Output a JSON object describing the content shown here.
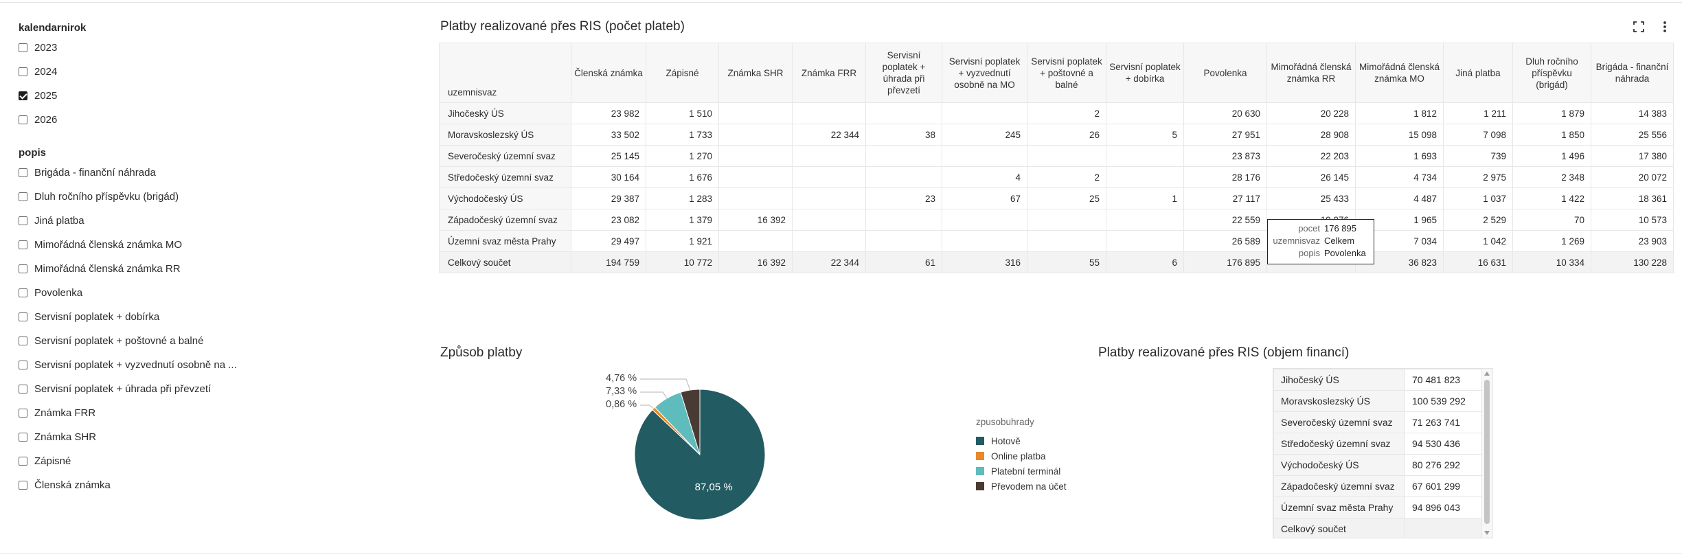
{
  "filters": {
    "year": {
      "title": "kalendarnirok",
      "options": [
        {
          "label": "2023",
          "checked": false
        },
        {
          "label": "2024",
          "checked": false
        },
        {
          "label": "2025",
          "checked": true
        },
        {
          "label": "2026",
          "checked": false
        }
      ]
    },
    "popis": {
      "title": "popis",
      "options": [
        {
          "label": "Brigáda - finanční náhrada",
          "checked": false
        },
        {
          "label": "Dluh ročního příspěvku (brigád)",
          "checked": false
        },
        {
          "label": "Jiná platba",
          "checked": false
        },
        {
          "label": "Mimořádná členská známka MO",
          "checked": false
        },
        {
          "label": "Mimořádná členská známka RR",
          "checked": false
        },
        {
          "label": "Povolenka",
          "checked": false
        },
        {
          "label": "Servisní poplatek + dobírka",
          "checked": false
        },
        {
          "label": "Servisní poplatek + poštovné a balné",
          "checked": false
        },
        {
          "label": "Servisní poplatek + vyzvednutí osobně na ...",
          "checked": false
        },
        {
          "label": "Servisní poplatek + úhrada při převzetí",
          "checked": false
        },
        {
          "label": "Známka FRR",
          "checked": false
        },
        {
          "label": "Známka SHR",
          "checked": false
        },
        {
          "label": "Zápisné",
          "checked": false
        },
        {
          "label": "Členská známka",
          "checked": false
        }
      ]
    }
  },
  "pivot": {
    "title": "Platby realizované přes RIS (počet plateb)",
    "row_header": "uzemnisvaz",
    "columns": [
      "Členská známka",
      "Zápisné",
      "Známka SHR",
      "Známka FRR",
      "Servisní poplatek + úhrada při převzetí",
      "Servisní poplatek + vyzvednutí osobně na MO",
      "Servisní poplatek + poštovné a balné",
      "Servisní poplatek + dobírka",
      "Povolenka",
      "Mimořádná členská známka RR",
      "Mimořádná členská známka MO",
      "Jiná platba",
      "Dluh ročního příspěvku (brigád)",
      "Brigáda - finanční náhrada"
    ],
    "rows": [
      {
        "label": "Jihočeský ÚS",
        "values": [
          "23 982",
          "1 510",
          "",
          "",
          "",
          "",
          "2",
          "",
          "20 630",
          "20 228",
          "1 812",
          "1 211",
          "1 879",
          "14 383"
        ]
      },
      {
        "label": "Moravskoslezský ÚS",
        "values": [
          "33 502",
          "1 733",
          "",
          "22 344",
          "38",
          "245",
          "26",
          "5",
          "27 951",
          "28 908",
          "15 098",
          "7 098",
          "1 850",
          "25 556"
        ]
      },
      {
        "label": "Severočeský územní svaz",
        "values": [
          "25 145",
          "1 270",
          "",
          "",
          "",
          "",
          "",
          "",
          "23 873",
          "22 203",
          "1 693",
          "739",
          "1 496",
          "17 380"
        ]
      },
      {
        "label": "Středočeský územní svaz",
        "values": [
          "30 164",
          "1 676",
          "",
          "",
          "",
          "4",
          "2",
          "",
          "28 176",
          "26 145",
          "4 734",
          "2 975",
          "2 348",
          "20 072"
        ]
      },
      {
        "label": "Východočeský ÚS",
        "values": [
          "29 387",
          "1 283",
          "",
          "",
          "23",
          "67",
          "25",
          "1",
          "27 117",
          "25 433",
          "4 487",
          "1 037",
          "1 422",
          "18 361"
        ]
      },
      {
        "label": "Západočeský územní svaz",
        "values": [
          "23 082",
          "1 379",
          "16 392",
          "",
          "",
          "",
          "",
          "",
          "22 559",
          "19 976",
          "1 965",
          "2 529",
          "70",
          "10 573"
        ]
      },
      {
        "label": "Územní svaz města Prahy",
        "values": [
          "29 497",
          "1 921",
          "",
          "",
          "",
          "",
          "",
          "",
          "26 589",
          "",
          "7 034",
          "1 042",
          "1 269",
          "23 903"
        ]
      }
    ],
    "total": {
      "label": "Celkový součet",
      "values": [
        "194 759",
        "10 772",
        "16 392",
        "22 344",
        "61",
        "316",
        "55",
        "6",
        "176 895",
        "",
        "36 823",
        "16 631",
        "10 334",
        "130 228"
      ]
    }
  },
  "tooltip": [
    {
      "key": "pocet",
      "value": "176 895"
    },
    {
      "key": "uzemnisvaz",
      "value": "Celkem"
    },
    {
      "key": "popis",
      "value": "Povolenka"
    }
  ],
  "pie": {
    "title": "Způsob platby",
    "legend_title": "zpusobuhrady",
    "slices": [
      {
        "name": "Hotově",
        "value": 87.05,
        "label": "87,05 %",
        "color": "#235b62"
      },
      {
        "name": "Online platba",
        "value": 0.86,
        "label": "0,86 %",
        "color": "#e8892a"
      },
      {
        "name": "Platební terminál",
        "value": 7.33,
        "label": "7,33 %",
        "color": "#5fbcbc"
      },
      {
        "name": "Převodem na účet",
        "value": 4.76,
        "label": "4,76 %",
        "color": "#4a3a34"
      }
    ]
  },
  "finance": {
    "title": "Platby realizované přes RIS (objem financí)",
    "rows": [
      {
        "label": "Jihočeský ÚS",
        "value": "70 481 823"
      },
      {
        "label": "Moravskoslezský ÚS",
        "value": "100 539 292"
      },
      {
        "label": "Severočeský územní svaz",
        "value": "71 263 741"
      },
      {
        "label": "Středočeský územní svaz",
        "value": "94 530 436"
      },
      {
        "label": "Východočeský ÚS",
        "value": "80 276 292"
      },
      {
        "label": "Západočeský územní svaz",
        "value": "67 601 299"
      },
      {
        "label": "Územní svaz města Prahy",
        "value": "94 896 043"
      },
      {
        "label": "Celkový součet",
        "value": ""
      }
    ]
  }
}
